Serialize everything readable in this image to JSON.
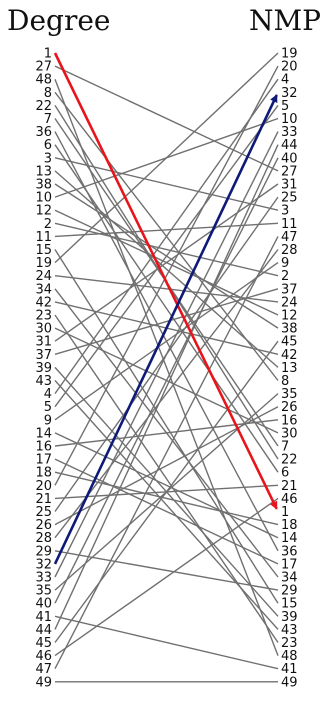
{
  "left_title": "Degree",
  "right_title": "NMP",
  "left_ranking": [
    1,
    27,
    48,
    8,
    22,
    7,
    36,
    6,
    3,
    13,
    38,
    10,
    12,
    2,
    11,
    15,
    19,
    24,
    34,
    42,
    23,
    30,
    31,
    37,
    39,
    43,
    4,
    5,
    9,
    14,
    16,
    17,
    18,
    20,
    21,
    25,
    26,
    28,
    29,
    32,
    33,
    35,
    40,
    41,
    44,
    45,
    46,
    47,
    49
  ],
  "right_ranking": [
    19,
    20,
    4,
    32,
    5,
    10,
    33,
    44,
    40,
    27,
    31,
    25,
    3,
    11,
    47,
    28,
    9,
    2,
    37,
    24,
    12,
    38,
    45,
    42,
    13,
    8,
    35,
    26,
    16,
    30,
    7,
    22,
    6,
    21,
    46,
    1,
    18,
    14,
    36,
    17,
    34,
    29,
    15,
    39,
    43,
    23,
    48,
    41,
    49
  ],
  "highlighted": [
    {
      "node": 1,
      "color": "#e8141b"
    },
    {
      "node": 32,
      "color": "#0f1a78"
    }
  ]
}
